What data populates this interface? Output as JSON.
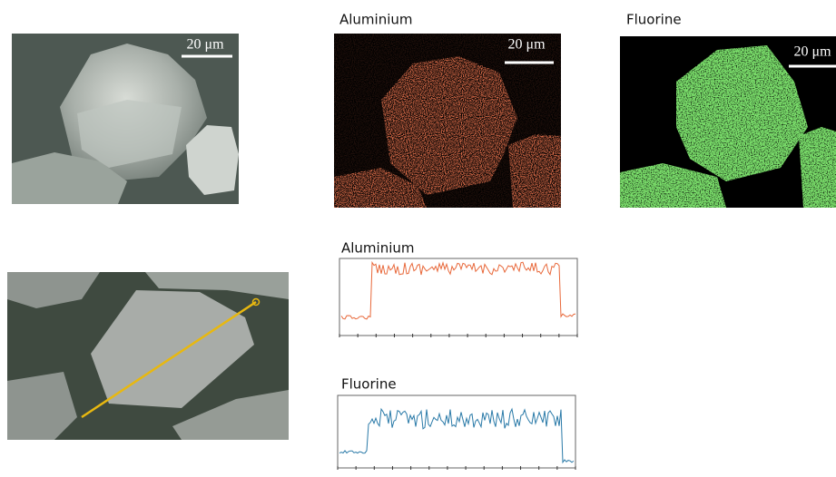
{
  "sem_image": {
    "scale_bar": "20 μm"
  },
  "maps": [
    {
      "title": "Aluminium",
      "scale_bar": "20 μm"
    },
    {
      "title": "Fluorine",
      "scale_bar": "20 μm"
    }
  ],
  "line_scans": [
    {
      "title": "Aluminium"
    },
    {
      "title": "Fluorine"
    }
  ]
}
